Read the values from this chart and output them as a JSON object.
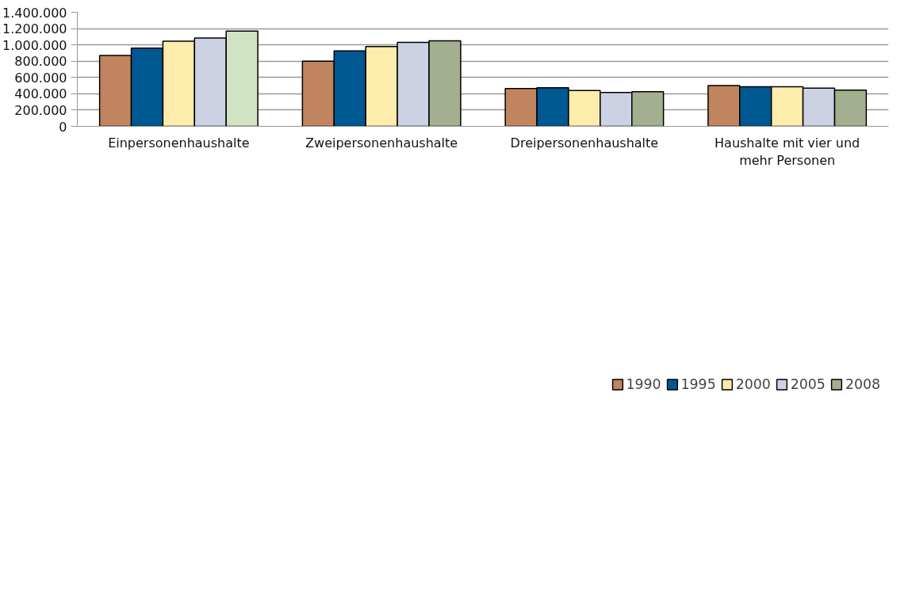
{
  "chart_data": {
    "type": "bar",
    "categories": [
      "Einpersonenhaushalte",
      "Zweipersonenhaushalte",
      "Dreipersonenhaushalte",
      "Haushalte mit vier und mehr Personen"
    ],
    "series": [
      {
        "name": "1990",
        "color": "#c0855f",
        "values": [
          870000,
          800000,
          465000,
          500000
        ]
      },
      {
        "name": "1995",
        "color": "#005893",
        "values": [
          960000,
          925000,
          475000,
          485000
        ]
      },
      {
        "name": "2000",
        "color": "#feecac",
        "values": [
          1045000,
          980000,
          440000,
          485000
        ]
      },
      {
        "name": "2005",
        "color": "#ccd2e4",
        "values": [
          1085000,
          1030000,
          415000,
          470000
        ]
      },
      {
        "name": "2008",
        "color": "#a4af8f",
        "colors": [
          "#d0e4c4",
          "#a4af8f",
          "#a4af8f",
          "#a4af8f"
        ],
        "values": [
          1170000,
          1050000,
          425000,
          445000
        ]
      }
    ],
    "ylim": [
      0,
      1400000
    ],
    "yticks": [
      0,
      {
        "value": 200000,
        "label": "200.000"
      },
      {
        "value": 400000,
        "label": "400.000"
      },
      {
        "value": 600000,
        "label": "600.000"
      },
      {
        "value": 800000,
        "label": "800.000"
      },
      {
        "value": 1000000,
        "label": "1.000.000"
      },
      {
        "value": 1200000,
        "label": "1.200.000"
      },
      {
        "value": 1400000,
        "label": "1.400.000"
      }
    ],
    "grid": "y",
    "legend": "bottom"
  }
}
